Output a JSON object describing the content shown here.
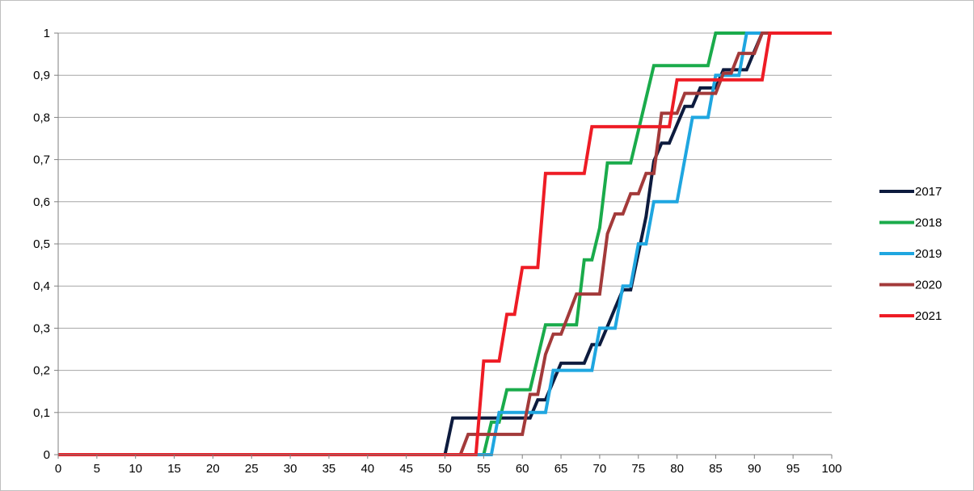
{
  "chart_data": {
    "type": "line",
    "title": "",
    "xlabel": "",
    "ylabel": "",
    "xlim": [
      0,
      100
    ],
    "ylim": [
      0,
      1
    ],
    "x_ticks": [
      0,
      5,
      10,
      15,
      20,
      25,
      30,
      35,
      40,
      45,
      50,
      55,
      60,
      65,
      70,
      75,
      80,
      85,
      90,
      95,
      100
    ],
    "x_tick_labels": [
      "0",
      "5",
      "10",
      "15",
      "20",
      "25",
      "30",
      "35",
      "40",
      "45",
      "50",
      "55",
      "60",
      "65",
      "70",
      "75",
      "80",
      "85",
      "90",
      "95",
      "100"
    ],
    "y_ticks": [
      0,
      0.1,
      0.2,
      0.3,
      0.4,
      0.5,
      0.6,
      0.7,
      0.8,
      0.9,
      1
    ],
    "y_tick_labels": [
      "0",
      "0,1",
      "0,2",
      "0,3",
      "0,4",
      "0,5",
      "0,6",
      "0,7",
      "0,8",
      "0,9",
      "1"
    ],
    "grid": "horizontal",
    "legend_position": "right",
    "series": [
      {
        "name": "2017",
        "color": "#0d1b3e",
        "points": [
          [
            0,
            0
          ],
          [
            50,
            0
          ],
          [
            51,
            0.087
          ],
          [
            60,
            0.087
          ],
          [
            61,
            0.087
          ],
          [
            62,
            0.13
          ],
          [
            63,
            0.13
          ],
          [
            64,
            0.174
          ],
          [
            65,
            0.217
          ],
          [
            68,
            0.217
          ],
          [
            69,
            0.261
          ],
          [
            70,
            0.261
          ],
          [
            71,
            0.304
          ],
          [
            72,
            0.348
          ],
          [
            73,
            0.391
          ],
          [
            74,
            0.391
          ],
          [
            75,
            0.478
          ],
          [
            76,
            0.565
          ],
          [
            77,
            0.696
          ],
          [
            78,
            0.739
          ],
          [
            79,
            0.739
          ],
          [
            80,
            0.783
          ],
          [
            81,
            0.826
          ],
          [
            82,
            0.826
          ],
          [
            83,
            0.87
          ],
          [
            85,
            0.87
          ],
          [
            86,
            0.913
          ],
          [
            88,
            0.913
          ],
          [
            89,
            0.913
          ],
          [
            90,
            0.957
          ],
          [
            91,
            1
          ],
          [
            100,
            1
          ]
        ]
      },
      {
        "name": "2018",
        "color": "#1aab4b",
        "points": [
          [
            0,
            0
          ],
          [
            55,
            0
          ],
          [
            56,
            0.077
          ],
          [
            57,
            0.077
          ],
          [
            58,
            0.154
          ],
          [
            61,
            0.154
          ],
          [
            62,
            0.231
          ],
          [
            63,
            0.308
          ],
          [
            67,
            0.308
          ],
          [
            68,
            0.462
          ],
          [
            69,
            0.462
          ],
          [
            70,
            0.538
          ],
          [
            71,
            0.692
          ],
          [
            74,
            0.692
          ],
          [
            75,
            0.769
          ],
          [
            77,
            0.923
          ],
          [
            84,
            0.923
          ],
          [
            85,
            1
          ],
          [
            100,
            1
          ]
        ]
      },
      {
        "name": "2019",
        "color": "#1fa6e0",
        "points": [
          [
            0,
            0
          ],
          [
            56,
            0
          ],
          [
            57,
            0.1
          ],
          [
            63,
            0.1
          ],
          [
            64,
            0.2
          ],
          [
            69,
            0.2
          ],
          [
            70,
            0.3
          ],
          [
            71,
            0.3
          ],
          [
            72,
            0.3
          ],
          [
            73,
            0.4
          ],
          [
            74,
            0.4
          ],
          [
            75,
            0.5
          ],
          [
            76,
            0.5
          ],
          [
            77,
            0.6
          ],
          [
            80,
            0.6
          ],
          [
            82,
            0.8
          ],
          [
            84,
            0.8
          ],
          [
            85,
            0.9
          ],
          [
            88,
            0.9
          ],
          [
            89,
            1
          ],
          [
            100,
            1
          ]
        ]
      },
      {
        "name": "2020",
        "color": "#a33a3a",
        "points": [
          [
            0,
            0
          ],
          [
            52,
            0
          ],
          [
            53,
            0.048
          ],
          [
            60,
            0.048
          ],
          [
            61,
            0.143
          ],
          [
            62,
            0.143
          ],
          [
            63,
            0.238
          ],
          [
            64,
            0.286
          ],
          [
            65,
            0.286
          ],
          [
            66,
            0.333
          ],
          [
            67,
            0.381
          ],
          [
            70,
            0.381
          ],
          [
            71,
            0.524
          ],
          [
            72,
            0.571
          ],
          [
            73,
            0.571
          ],
          [
            74,
            0.619
          ],
          [
            75,
            0.619
          ],
          [
            76,
            0.667
          ],
          [
            77,
            0.667
          ],
          [
            78,
            0.81
          ],
          [
            80,
            0.81
          ],
          [
            81,
            0.857
          ],
          [
            85,
            0.857
          ],
          [
            86,
            0.905
          ],
          [
            87,
            0.905
          ],
          [
            88,
            0.952
          ],
          [
            90,
            0.952
          ],
          [
            91,
            1
          ],
          [
            100,
            1
          ]
        ]
      },
      {
        "name": "2021",
        "color": "#ee1c25",
        "points": [
          [
            0,
            0
          ],
          [
            54,
            0
          ],
          [
            55,
            0.222
          ],
          [
            57,
            0.222
          ],
          [
            58,
            0.333
          ],
          [
            59,
            0.333
          ],
          [
            60,
            0.444
          ],
          [
            62,
            0.444
          ],
          [
            63,
            0.667
          ],
          [
            68,
            0.667
          ],
          [
            69,
            0.778
          ],
          [
            79,
            0.778
          ],
          [
            80,
            0.889
          ],
          [
            91,
            0.889
          ],
          [
            92,
            1
          ],
          [
            100,
            1
          ]
        ]
      }
    ]
  }
}
